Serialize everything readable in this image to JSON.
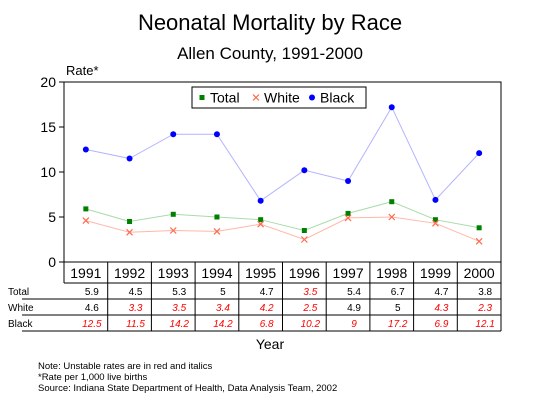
{
  "chart_data": {
    "type": "line",
    "title": "Neonatal Mortality by Race",
    "subtitle": "Allen County, 1991-2000",
    "ylabel": "Rate*",
    "xlabel": "Year",
    "ylim": [
      0,
      20
    ],
    "yticks": [
      "0",
      "5",
      "10",
      "15",
      "20"
    ],
    "categories": [
      "1991",
      "1992",
      "1993",
      "1994",
      "1995",
      "1996",
      "1997",
      "1998",
      "1999",
      "2000"
    ],
    "legend_placement": "top-center",
    "grid": false,
    "series": [
      {
        "name": "Total",
        "marker": "square",
        "color": "#008000",
        "line_color": "#a8dca8",
        "values": [
          5.9,
          4.5,
          5.3,
          5.0,
          4.7,
          3.5,
          5.4,
          6.7,
          4.7,
          3.8
        ]
      },
      {
        "name": "White",
        "marker": "x",
        "color": "#ff6a50",
        "line_color": "#ffb8a8",
        "values": [
          4.6,
          3.3,
          3.5,
          3.4,
          4.2,
          2.5,
          4.9,
          5.0,
          4.3,
          2.3
        ]
      },
      {
        "name": "Black",
        "marker": "circle",
        "color": "#0000ff",
        "line_color": "#b4b4ff",
        "values": [
          12.5,
          11.5,
          14.2,
          14.2,
          6.8,
          10.2,
          9.0,
          17.2,
          6.9,
          12.1
        ]
      }
    ],
    "table": {
      "rows": [
        {
          "label": "Total",
          "cells": [
            "5.9",
            "4.5",
            "5.3",
            "5",
            "4.7",
            "3.5",
            "5.4",
            "6.7",
            "4.7",
            "3.8"
          ],
          "unstable": [
            false,
            false,
            false,
            false,
            false,
            true,
            false,
            false,
            false,
            false
          ]
        },
        {
          "label": "White",
          "cells": [
            "4.6",
            "3.3",
            "3.5",
            "3.4",
            "4.2",
            "2.5",
            "4.9",
            "5",
            "4.3",
            "2.3"
          ],
          "unstable": [
            false,
            true,
            true,
            true,
            true,
            true,
            false,
            false,
            true,
            true
          ]
        },
        {
          "label": "Black",
          "cells": [
            "12.5",
            "11.5",
            "14.2",
            "14.2",
            "6.8",
            "10.2",
            "9",
            "17.2",
            "6.9",
            "12.1"
          ],
          "unstable": [
            true,
            true,
            true,
            true,
            true,
            true,
            true,
            true,
            true,
            true
          ]
        }
      ]
    },
    "unstable_color": "#ff0000",
    "notes": [
      "Note:  Unstable rates are in red and italics",
      "*Rate per 1,000 live births",
      "Source:  Indiana State Department of Health, Data Analysis Team, 2002"
    ]
  }
}
